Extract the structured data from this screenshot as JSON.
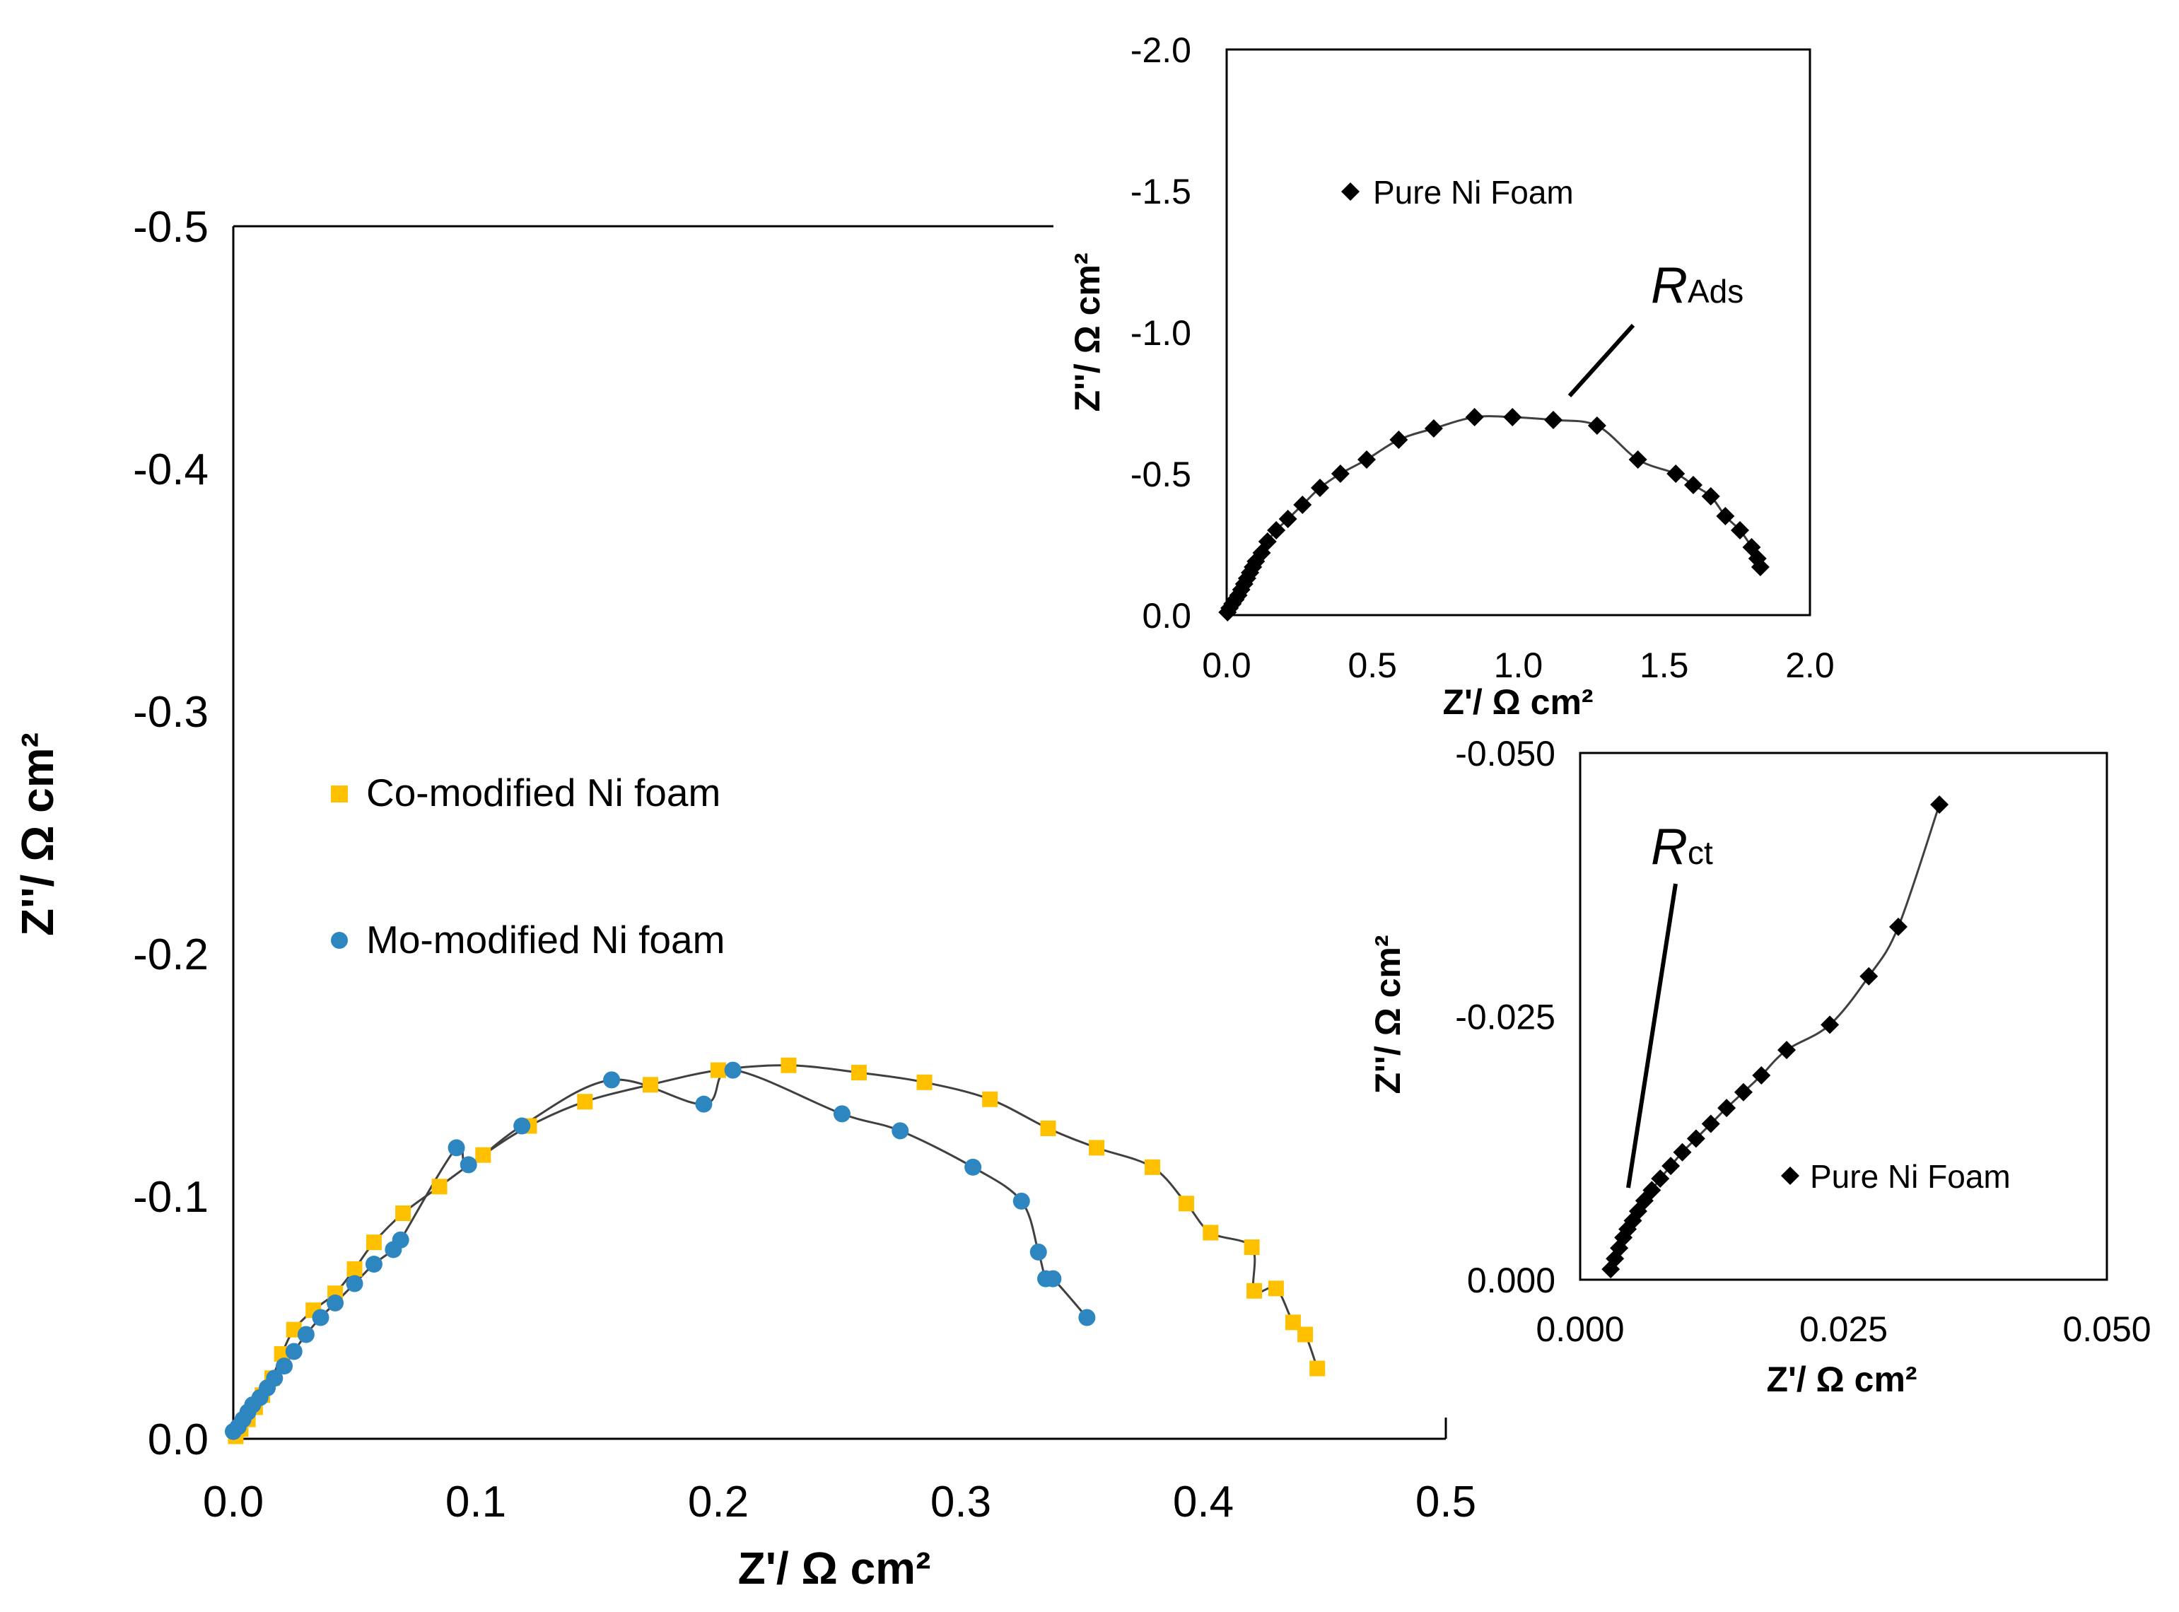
{
  "chart_data": [
    {
      "id": "main",
      "type": "scatter",
      "title": "",
      "xlabel": "Z'/ Ω cm²",
      "ylabel": "Z''/ Ω cm²",
      "xlim": [
        0.0,
        0.5
      ],
      "ylim": [
        0.0,
        -0.5
      ],
      "x_ticks": [
        "0.0",
        "0.1",
        "0.2",
        "0.3",
        "0.4",
        "0.5"
      ],
      "y_ticks": [
        "0.0",
        "-0.1",
        "-0.2",
        "-0.3",
        "-0.4",
        "-0.5"
      ],
      "legend_position": "center-left",
      "series": [
        {
          "name": "Co-modified Ni foam",
          "marker": "square",
          "color": "#FFC000",
          "x": [
            0.001,
            0.003,
            0.006,
            0.009,
            0.012,
            0.016,
            0.02,
            0.025,
            0.033,
            0.042,
            0.05,
            0.058,
            0.07,
            0.085,
            0.103,
            0.122,
            0.145,
            0.172,
            0.2,
            0.229,
            0.258,
            0.285,
            0.312,
            0.336,
            0.356,
            0.379,
            0.393,
            0.403,
            0.42,
            0.43,
            0.421,
            0.437,
            0.442,
            0.447
          ],
          "y": [
            -0.001,
            -0.004,
            -0.008,
            -0.013,
            -0.018,
            -0.025,
            -0.035,
            -0.045,
            -0.053,
            -0.06,
            -0.07,
            -0.081,
            -0.093,
            -0.104,
            -0.117,
            -0.129,
            -0.139,
            -0.146,
            -0.152,
            -0.154,
            -0.151,
            -0.147,
            -0.14,
            -0.128,
            -0.12,
            -0.112,
            -0.097,
            -0.085,
            -0.079,
            -0.062,
            -0.061,
            -0.048,
            -0.043,
            -0.029
          ]
        },
        {
          "name": "Mo-modified Ni foam",
          "marker": "circle",
          "color": "#2E86C1",
          "x": [
            0.0,
            0.002,
            0.004,
            0.006,
            0.008,
            0.011,
            0.014,
            0.017,
            0.021,
            0.025,
            0.03,
            0.036,
            0.042,
            0.05,
            0.058,
            0.066,
            0.069,
            0.092,
            0.097,
            0.119,
            0.156,
            0.194,
            0.206,
            0.251,
            0.275,
            0.305,
            0.325,
            0.332,
            0.335,
            0.338,
            0.352
          ],
          "y": [
            -0.003,
            -0.005,
            -0.008,
            -0.011,
            -0.014,
            -0.017,
            -0.021,
            -0.025,
            -0.03,
            -0.036,
            -0.043,
            -0.05,
            -0.056,
            -0.064,
            -0.072,
            -0.078,
            -0.082,
            -0.12,
            -0.113,
            -0.129,
            -0.148,
            -0.138,
            -0.152,
            -0.134,
            -0.127,
            -0.112,
            -0.098,
            -0.077,
            -0.066,
            -0.066,
            -0.05
          ]
        }
      ]
    },
    {
      "id": "inset-top",
      "type": "scatter",
      "title": "",
      "xlabel": "Z'/ Ω cm²",
      "ylabel": "Z''/ Ω cm²",
      "xlim": [
        0.0,
        2.0
      ],
      "ylim": [
        0.0,
        -2.0
      ],
      "x_ticks": [
        "0.0",
        "0.5",
        "1.0",
        "1.5",
        "2.0"
      ],
      "y_ticks": [
        "0.0",
        "-0.5",
        "-1.0",
        "-1.5",
        "-2.0"
      ],
      "legend_position": "top-left",
      "annotation": {
        "text": "R",
        "subscript": "Ads"
      },
      "series": [
        {
          "name": "Pure Ni Foam",
          "marker": "diamond",
          "color": "#000000",
          "x": [
            0.003,
            0.01,
            0.02,
            0.03,
            0.04,
            0.05,
            0.06,
            0.07,
            0.08,
            0.09,
            0.1,
            0.12,
            0.14,
            0.17,
            0.21,
            0.26,
            0.32,
            0.39,
            0.48,
            0.59,
            0.71,
            0.85,
            0.98,
            1.12,
            1.27,
            1.41,
            1.54,
            1.6,
            1.66,
            1.71,
            1.76,
            1.8,
            1.82,
            1.83
          ],
          "y": [
            -0.01,
            -0.025,
            -0.04,
            -0.055,
            -0.07,
            -0.09,
            -0.11,
            -0.13,
            -0.15,
            -0.17,
            -0.19,
            -0.22,
            -0.26,
            -0.3,
            -0.34,
            -0.39,
            -0.45,
            -0.5,
            -0.55,
            -0.62,
            -0.66,
            -0.7,
            -0.7,
            -0.69,
            -0.67,
            -0.55,
            -0.5,
            -0.46,
            -0.42,
            -0.35,
            -0.3,
            -0.24,
            -0.2,
            -0.17
          ]
        }
      ]
    },
    {
      "id": "inset-bottom",
      "type": "scatter",
      "title": "",
      "xlabel": "Z'/ Ω cm²",
      "ylabel": "Z''/ Ω cm²",
      "xlim": [
        0.0,
        0.05
      ],
      "ylim": [
        0.0,
        -0.05
      ],
      "x_ticks": [
        "0.000",
        "0.025",
        "0.050"
      ],
      "y_ticks": [
        "0.000",
        "-0.025",
        "-0.050"
      ],
      "legend_position": "bottom-right",
      "annotation": {
        "text": "R",
        "subscript": "ct"
      },
      "series": [
        {
          "name": "Pure Ni Foam",
          "marker": "diamond",
          "color": "#000000",
          "x": [
            0.0029,
            0.0033,
            0.0037,
            0.0041,
            0.0045,
            0.005,
            0.0055,
            0.0061,
            0.0068,
            0.0076,
            0.0086,
            0.0097,
            0.011,
            0.0124,
            0.0139,
            0.0155,
            0.0172,
            0.0196,
            0.0237,
            0.0274,
            0.0302,
            0.0341
          ],
          "y": [
            -0.001,
            -0.002,
            -0.003,
            -0.004,
            -0.0048,
            -0.0056,
            -0.0065,
            -0.0075,
            -0.0085,
            -0.0096,
            -0.0108,
            -0.0121,
            -0.0134,
            -0.0148,
            -0.0163,
            -0.0178,
            -0.0194,
            -0.0218,
            -0.0242,
            -0.0288,
            -0.0335,
            -0.0451
          ]
        }
      ]
    }
  ]
}
